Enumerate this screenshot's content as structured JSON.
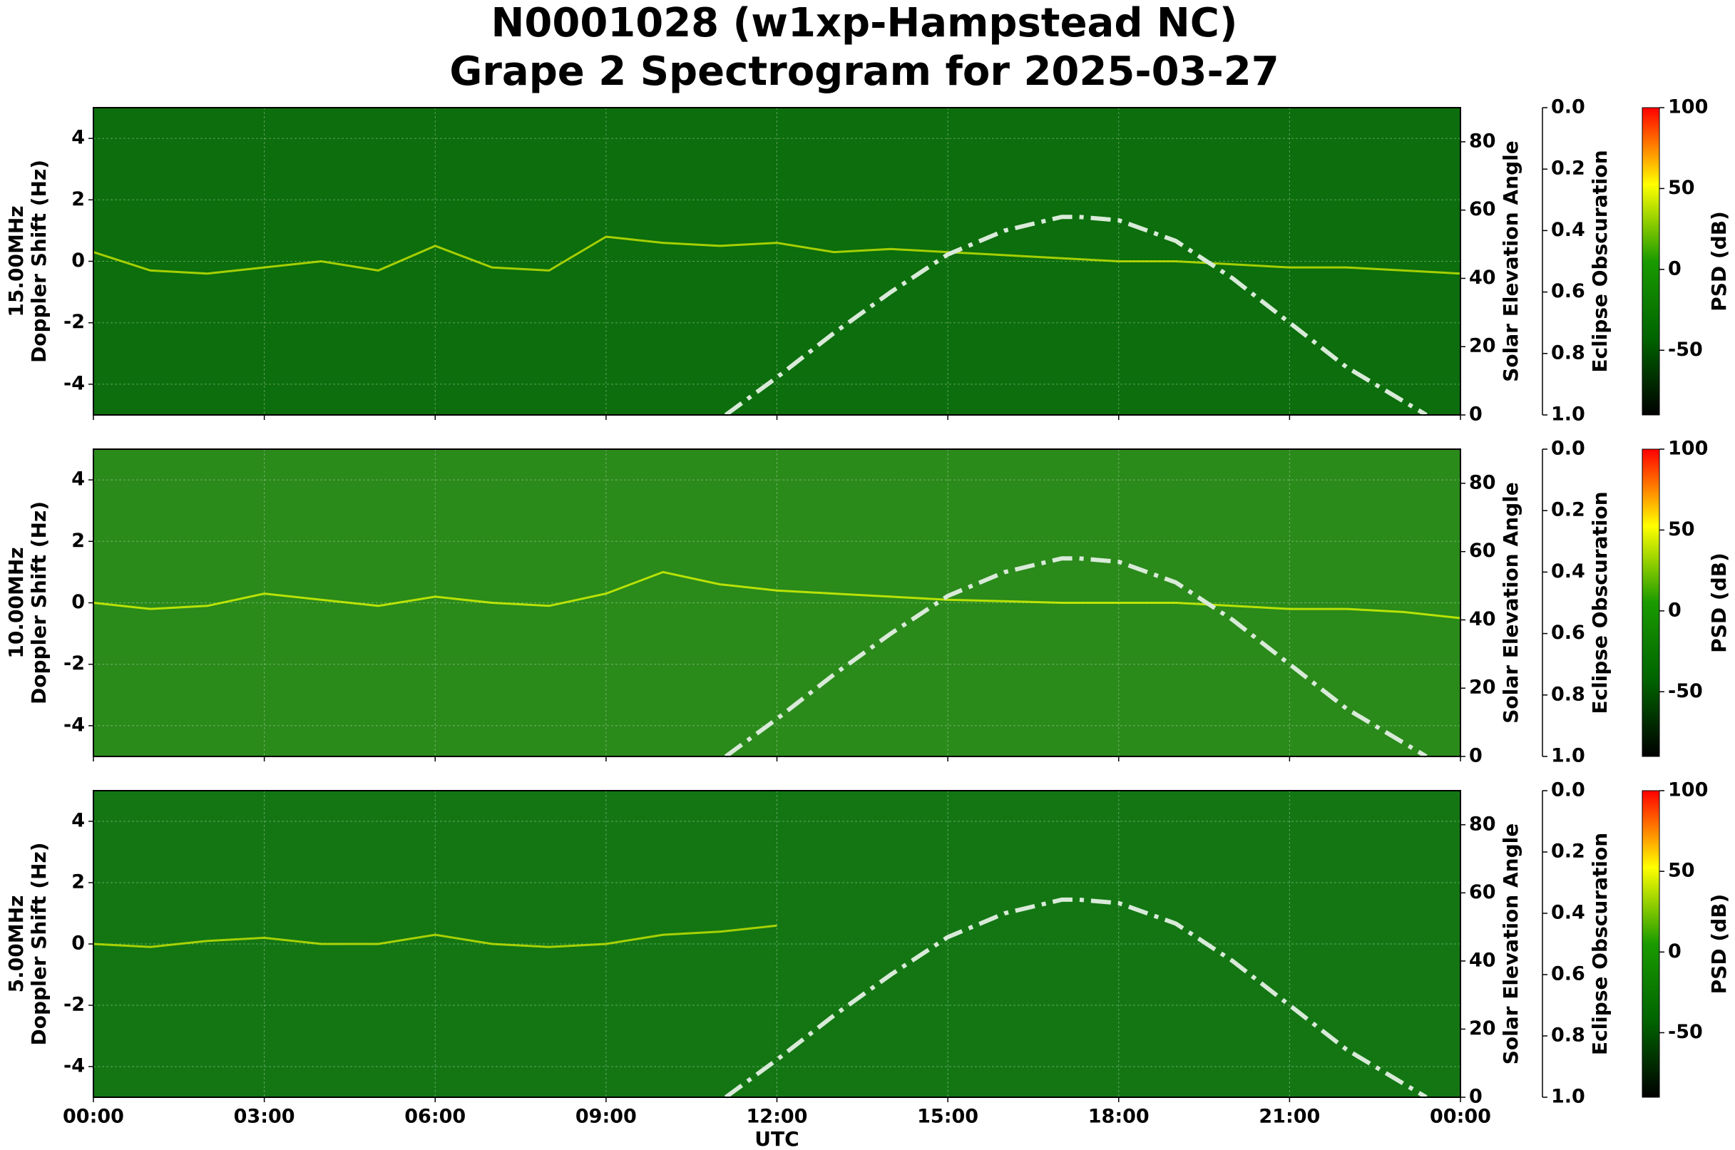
{
  "chart_data": [
    {
      "type": "spectrogram",
      "title": [
        "N0001028 (w1xp-Hampstead NC)",
        "Grape 2 Spectrogram for 2025-03-27"
      ],
      "ylabel": [
        "15.00MHz",
        "Doppler Shift (Hz)"
      ],
      "y2label": "Solar Elevation Angle",
      "y3label": "Eclipse Obscuration",
      "clabel": "PSD (dB)",
      "background": "#0c6e0c",
      "grid": true,
      "xlim": [
        0,
        24
      ],
      "xticks": [
        0,
        3,
        6,
        9,
        12,
        15,
        18,
        21,
        24
      ],
      "ylim": [
        -5,
        5
      ],
      "yticks": [
        -4,
        -2,
        0,
        2,
        4
      ],
      "y2lim": [
        0,
        90
      ],
      "y2ticks": [
        0,
        20,
        40,
        60,
        80
      ],
      "y3lim": [
        1,
        0
      ],
      "y3ticks": [
        {
          "value": 0,
          "label": "0.0"
        },
        {
          "value": 0.2,
          "label": "0.2"
        },
        {
          "value": 0.4,
          "label": "0.4"
        },
        {
          "value": 0.6,
          "label": "0.6"
        },
        {
          "value": 0.8,
          "label": "0.8"
        },
        {
          "value": 1,
          "label": "1.0"
        }
      ],
      "clim": [
        -90,
        100
      ],
      "cticks": [
        -50,
        0,
        50,
        100
      ],
      "colormap": [
        "#000000",
        "#006400",
        "#1a9a00",
        "#ffff00",
        "#ff0000"
      ],
      "trace": {
        "color": "#d8f000",
        "x": [
          0,
          1,
          2,
          3,
          4,
          5,
          6,
          7,
          8,
          9,
          10,
          11,
          12,
          13,
          14,
          15,
          16,
          17,
          18,
          19,
          20,
          21,
          22,
          23,
          24
        ],
        "values": [
          0.3,
          -0.3,
          -0.4,
          -0.2,
          0,
          -0.3,
          0.5,
          -0.2,
          -0.3,
          0.8,
          0.6,
          0.5,
          0.6,
          0.3,
          0.4,
          0.3,
          0.2,
          0.1,
          0,
          0,
          -0.1,
          -0.2,
          -0.2,
          -0.3,
          -0.4
        ]
      },
      "solar_elevation": {
        "color": "#d9ead9",
        "x": [
          11.1,
          12,
          13,
          14,
          15,
          16,
          17,
          17.3,
          18,
          19,
          20,
          21,
          22,
          23,
          23.4
        ],
        "values": [
          0,
          11,
          24,
          36,
          47,
          54,
          58,
          58,
          57,
          51,
          40,
          27,
          14,
          4,
          0
        ]
      },
      "obscuration": {
        "color": "#dddddd",
        "x": [
          0,
          24
        ],
        "values": [
          0,
          0
        ]
      }
    },
    {
      "type": "spectrogram",
      "ylabel": [
        "10.00MHz",
        "Doppler Shift (Hz)"
      ],
      "y2label": "Solar Elevation Angle",
      "y3label": "Eclipse Obscuration",
      "clabel": "PSD (dB)",
      "background": "#2a8a1a",
      "grid": true,
      "xlim": [
        0,
        24
      ],
      "xticks": [
        0,
        3,
        6,
        9,
        12,
        15,
        18,
        21,
        24
      ],
      "ylim": [
        -5,
        5
      ],
      "yticks": [
        -4,
        -2,
        0,
        2,
        4
      ],
      "y2lim": [
        0,
        90
      ],
      "y2ticks": [
        0,
        20,
        40,
        60,
        80
      ],
      "y3lim": [
        1,
        0
      ],
      "y3ticks": [
        {
          "value": 0,
          "label": "0.0"
        },
        {
          "value": 0.2,
          "label": "0.2"
        },
        {
          "value": 0.4,
          "label": "0.4"
        },
        {
          "value": 0.6,
          "label": "0.6"
        },
        {
          "value": 0.8,
          "label": "0.8"
        },
        {
          "value": 1,
          "label": "1.0"
        }
      ],
      "clim": [
        -90,
        100
      ],
      "cticks": [
        -50,
        0,
        50,
        100
      ],
      "colormap": [
        "#000000",
        "#006400",
        "#1a9a00",
        "#ffff00",
        "#ff0000"
      ],
      "trace": {
        "color": "#e8ff00",
        "x": [
          0,
          1,
          2,
          3,
          4,
          5,
          6,
          7,
          8,
          9,
          10,
          11,
          12,
          13,
          14,
          15,
          16,
          17,
          18,
          19,
          20,
          21,
          22,
          23,
          24
        ],
        "values": [
          0,
          -0.2,
          -0.1,
          0.3,
          0.1,
          -0.1,
          0.2,
          0,
          -0.1,
          0.3,
          1,
          0.6,
          0.4,
          0.3,
          0.2,
          0.1,
          0.05,
          0,
          0,
          0,
          -0.1,
          -0.2,
          -0.2,
          -0.3,
          -0.5
        ]
      },
      "solar_elevation": {
        "color": "#d9ead9",
        "x": [
          11.1,
          12,
          13,
          14,
          15,
          16,
          17,
          17.3,
          18,
          19,
          20,
          21,
          22,
          23,
          23.4
        ],
        "values": [
          0,
          11,
          24,
          36,
          47,
          54,
          58,
          58,
          57,
          51,
          40,
          27,
          14,
          4,
          0
        ]
      },
      "obscuration": {
        "color": "#dddddd",
        "x": [
          0,
          24
        ],
        "values": [
          0,
          0
        ]
      }
    },
    {
      "type": "spectrogram",
      "ylabel": [
        "5.00MHz",
        "Doppler Shift (Hz)"
      ],
      "y2label": "Solar Elevation Angle",
      "y3label": "Eclipse Obscuration",
      "clabel": "PSD (dB)",
      "xlabel": "UTC",
      "background": "#137613",
      "grid": true,
      "xlim": [
        0,
        24
      ],
      "xticks": [
        {
          "value": 0,
          "label": "00:00"
        },
        {
          "value": 3,
          "label": "03:00"
        },
        {
          "value": 6,
          "label": "06:00"
        },
        {
          "value": 9,
          "label": "09:00"
        },
        {
          "value": 12,
          "label": "12:00"
        },
        {
          "value": 15,
          "label": "15:00"
        },
        {
          "value": 18,
          "label": "18:00"
        },
        {
          "value": 21,
          "label": "21:00"
        },
        {
          "value": 24,
          "label": "00:00"
        }
      ],
      "ylim": [
        -5,
        5
      ],
      "yticks": [
        -4,
        -2,
        0,
        2,
        4
      ],
      "y2lim": [
        0,
        90
      ],
      "y2ticks": [
        0,
        20,
        40,
        60,
        80
      ],
      "y3lim": [
        1,
        0
      ],
      "y3ticks": [
        {
          "value": 0,
          "label": "0.0"
        },
        {
          "value": 0.2,
          "label": "0.2"
        },
        {
          "value": 0.4,
          "label": "0.4"
        },
        {
          "value": 0.6,
          "label": "0.6"
        },
        {
          "value": 0.8,
          "label": "0.8"
        },
        {
          "value": 1,
          "label": "1.0"
        }
      ],
      "clim": [
        -90,
        100
      ],
      "cticks": [
        -50,
        0,
        50,
        100
      ],
      "colormap": [
        "#000000",
        "#006400",
        "#1a9a00",
        "#ffff00",
        "#ff0000"
      ],
      "trace": {
        "color": "#d8f000",
        "x": [
          0,
          1,
          2,
          3,
          4,
          5,
          6,
          7,
          8,
          9,
          10,
          11,
          12,
          13,
          14,
          15,
          16,
          17,
          18,
          19,
          20,
          21,
          22,
          23,
          24
        ],
        "values": [
          0,
          -0.1,
          0.1,
          0.2,
          0,
          0,
          0.3,
          0,
          -0.1,
          0,
          0.3,
          0.4,
          0.6,
          null,
          null,
          null,
          null,
          null,
          null,
          null,
          null,
          null,
          null,
          null,
          null
        ]
      },
      "solar_elevation": {
        "color": "#d9ead9",
        "x": [
          11.1,
          12,
          13,
          14,
          15,
          16,
          17,
          17.3,
          18,
          19,
          20,
          21,
          22,
          23,
          23.4
        ],
        "values": [
          0,
          11,
          24,
          36,
          47,
          54,
          58,
          58,
          57,
          51,
          40,
          27,
          14,
          4,
          0
        ]
      },
      "obscuration": {
        "color": "#dddddd",
        "x": [
          0,
          24
        ],
        "values": [
          0,
          0
        ]
      }
    }
  ]
}
